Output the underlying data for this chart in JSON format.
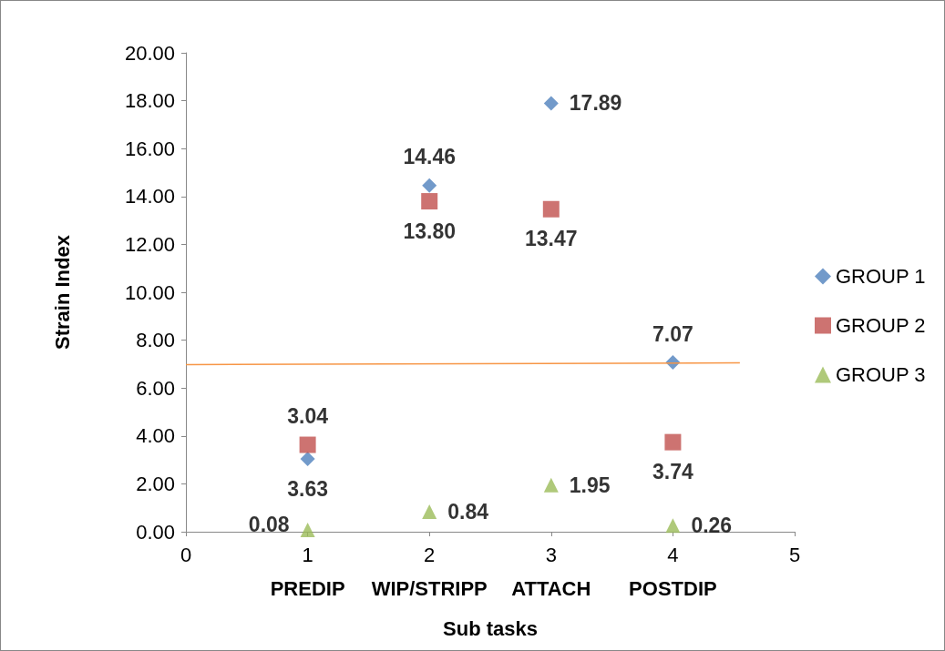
{
  "chart_data": {
    "type": "scatter",
    "xlabel": "Sub tasks",
    "ylabel": "Strain Index",
    "x": [
      1,
      2,
      3,
      4
    ],
    "series": [
      {
        "name": "GROUP 1",
        "color": "#4f81bd",
        "marker": "diamond",
        "values": [
          3.04,
          14.46,
          17.89,
          7.07
        ],
        "value_labels": [
          "3.04",
          "14.46",
          "17.89",
          "7.07"
        ]
      },
      {
        "name": "GROUP 2",
        "color": "#c0504d",
        "marker": "square",
        "values": [
          3.63,
          13.8,
          13.47,
          3.74
        ],
        "value_labels": [
          "3.63",
          "13.80",
          "13.47",
          "3.74"
        ]
      },
      {
        "name": "GROUP 3",
        "color": "#9bbb59",
        "marker": "triangle",
        "values": [
          0.08,
          0.84,
          1.95,
          0.26
        ],
        "value_labels": [
          "0.08",
          "0.84",
          "1.95",
          "0.26"
        ]
      },
      {
        "type": "line",
        "color": "#f79646",
        "marker": "none",
        "x": [
          0,
          4.55
        ],
        "values": [
          6.98,
          7.05
        ]
      }
    ],
    "xlim": [
      0,
      5
    ],
    "xticks": [
      0,
      1,
      2,
      3,
      4,
      5
    ],
    "ylim": [
      0,
      20
    ],
    "yticks": [
      {
        "value": 0,
        "label": "0.00"
      },
      {
        "value": 2,
        "label": "2.00"
      },
      {
        "value": 4,
        "label": "4.00"
      },
      {
        "value": 6,
        "label": "6.00"
      },
      {
        "value": 8,
        "label": "8.00"
      },
      {
        "value": 10,
        "label": "10.00"
      },
      {
        "value": 12,
        "label": "12.00"
      },
      {
        "value": 14,
        "label": "14.00"
      },
      {
        "value": 16,
        "label": "16.00"
      },
      {
        "value": 18,
        "label": "18.00"
      },
      {
        "value": 20,
        "label": "20.00"
      }
    ],
    "annotations": [
      "PREDIP",
      "WIP/STRIPP",
      "ATTACH",
      "POSTDIP"
    ],
    "grid": false,
    "legend": "right"
  }
}
